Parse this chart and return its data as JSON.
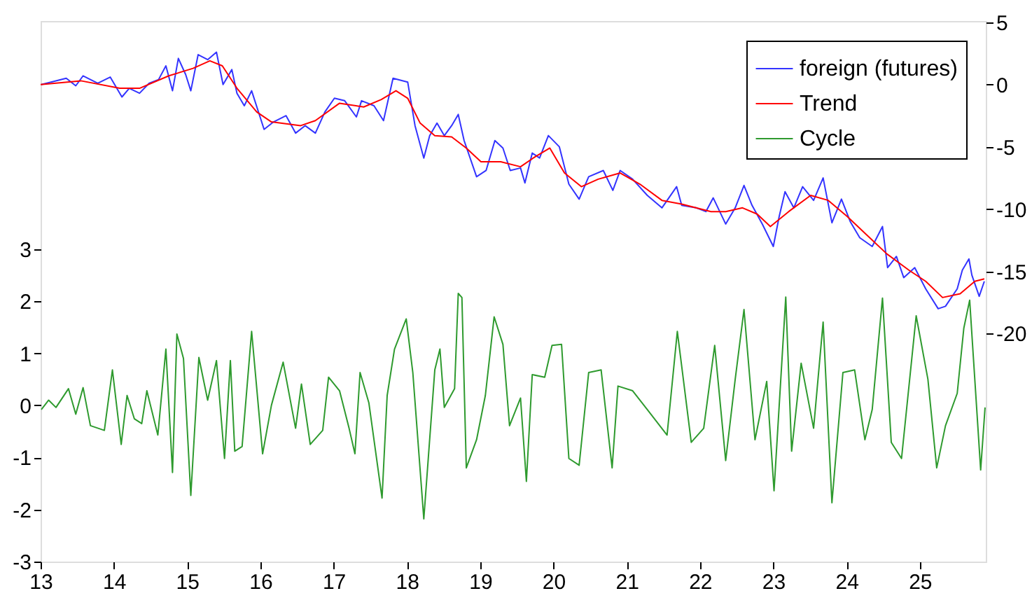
{
  "chart_data": {
    "type": "line",
    "legend": "top right",
    "xlim": [
      13,
      25.9
    ],
    "xticks": [
      13,
      14,
      15,
      16,
      17,
      18,
      19,
      20,
      21,
      22,
      23,
      24,
      25
    ],
    "ylim": [
      -3,
      7.38
    ],
    "yticks": [
      -3,
      -2,
      -1,
      0,
      1,
      2,
      3
    ],
    "y2lim": [
      -38.3,
      5.1
    ],
    "y2ticks": [
      -20,
      -15,
      -10,
      -5,
      0,
      5
    ],
    "series": [
      {
        "name": "foreign (futures)",
        "color": "#3333ff",
        "axis": "y2",
        "x": [
          13.01,
          13.35,
          13.48,
          13.58,
          13.78,
          13.95,
          14.11,
          14.21,
          14.35,
          14.48,
          14.61,
          14.71,
          14.8,
          14.88,
          14.98,
          15.05,
          15.15,
          15.28,
          15.4,
          15.49,
          15.61,
          15.68,
          15.78,
          15.88,
          16.05,
          16.18,
          16.35,
          16.48,
          16.61,
          16.75,
          16.88,
          17.01,
          17.15,
          17.31,
          17.38,
          17.55,
          17.68,
          17.81,
          18.01,
          18.11,
          18.23,
          18.31,
          18.41,
          18.51,
          18.61,
          18.7,
          18.78,
          18.95,
          19.08,
          19.2,
          19.31,
          19.41,
          19.55,
          19.61,
          19.71,
          19.81,
          19.93,
          20.08,
          20.21,
          20.35,
          20.48,
          20.68,
          20.81,
          20.91,
          21.08,
          21.28,
          21.48,
          21.68,
          21.75,
          21.95,
          22.08,
          22.18,
          22.35,
          22.48,
          22.6,
          22.71,
          22.85,
          23.0,
          23.08,
          23.16,
          23.28,
          23.4,
          23.55,
          23.68,
          23.8,
          23.93,
          24.05,
          24.18,
          24.35,
          24.49,
          24.56,
          24.68,
          24.78,
          24.93,
          25.08,
          25.25,
          25.35,
          25.51,
          25.58,
          25.67,
          25.71,
          25.81,
          25.88
        ],
        "values": [
          0.0,
          0.5,
          -0.1,
          0.7,
          0.1,
          0.6,
          -1.0,
          -0.3,
          -0.7,
          0.1,
          0.4,
          1.5,
          -0.5,
          2.1,
          0.8,
          -0.5,
          2.4,
          2.0,
          2.6,
          0.0,
          1.2,
          -0.7,
          -1.7,
          -0.5,
          -3.6,
          -3.0,
          -2.5,
          -3.9,
          -3.3,
          -3.9,
          -2.2,
          -1.1,
          -1.3,
          -2.6,
          -1.3,
          -1.7,
          -2.9,
          0.5,
          0.2,
          -3.3,
          -5.9,
          -4.1,
          -3.1,
          -4.1,
          -3.3,
          -2.4,
          -4.5,
          -7.4,
          -6.9,
          -4.5,
          -5.1,
          -6.9,
          -6.7,
          -7.9,
          -5.5,
          -5.9,
          -4.1,
          -5.0,
          -8.0,
          -9.2,
          -7.4,
          -6.9,
          -8.5,
          -6.9,
          -7.6,
          -8.9,
          -9.9,
          -8.2,
          -9.7,
          -9.9,
          -10.2,
          -9.1,
          -11.2,
          -9.9,
          -8.1,
          -9.7,
          -11.2,
          -13.0,
          -10.6,
          -8.6,
          -9.9,
          -8.2,
          -9.3,
          -7.5,
          -11.1,
          -9.2,
          -11.0,
          -12.3,
          -13.0,
          -11.4,
          -14.7,
          -13.8,
          -15.5,
          -14.7,
          -16.4,
          -18.0,
          -17.8,
          -16.4,
          -14.9,
          -14.0,
          -15.3,
          -17.0,
          -15.8
        ]
      },
      {
        "name": "Trend",
        "color": "#ff0000",
        "axis": "y2",
        "x": [
          13.0,
          13.55,
          14.08,
          14.35,
          14.75,
          15.08,
          15.31,
          15.48,
          15.68,
          15.95,
          16.15,
          16.55,
          16.75,
          17.08,
          17.41,
          17.65,
          17.85,
          18.01,
          18.18,
          18.38,
          18.61,
          18.81,
          19.01,
          19.28,
          19.55,
          19.75,
          19.95,
          20.15,
          20.38,
          20.61,
          20.91,
          21.18,
          21.48,
          21.75,
          22.15,
          22.35,
          22.58,
          22.78,
          22.96,
          23.21,
          23.51,
          23.75,
          24.01,
          24.28,
          24.55,
          24.85,
          25.08,
          25.31,
          25.55,
          25.75,
          25.88
        ],
        "values": [
          0.0,
          0.3,
          -0.3,
          -0.3,
          0.7,
          1.3,
          1.9,
          1.5,
          -0.3,
          -2.2,
          -3.0,
          -3.3,
          -2.9,
          -1.5,
          -1.8,
          -1.2,
          -0.5,
          -1.1,
          -3.1,
          -4.1,
          -4.2,
          -5.1,
          -6.2,
          -6.2,
          -6.6,
          -5.8,
          -5.1,
          -7.1,
          -8.2,
          -7.6,
          -7.1,
          -8.0,
          -9.3,
          -9.6,
          -10.2,
          -10.2,
          -9.9,
          -10.4,
          -11.4,
          -10.2,
          -8.9,
          -9.3,
          -10.6,
          -12.1,
          -13.6,
          -14.9,
          -15.8,
          -17.1,
          -16.8,
          -15.8,
          -15.6
        ]
      },
      {
        "name": "Cycle",
        "color": "#2e9a2e",
        "axis": "y",
        "x": [
          13.01,
          13.11,
          13.21,
          13.38,
          13.48,
          13.58,
          13.68,
          13.87,
          13.98,
          14.1,
          14.18,
          14.28,
          14.38,
          14.45,
          14.6,
          14.71,
          14.8,
          14.86,
          14.95,
          15.05,
          15.16,
          15.28,
          15.4,
          15.51,
          15.59,
          15.65,
          15.75,
          15.88,
          16.03,
          16.15,
          16.31,
          16.48,
          16.56,
          16.68,
          16.85,
          16.93,
          17.08,
          17.21,
          17.29,
          17.36,
          17.48,
          17.66,
          17.73,
          17.83,
          17.99,
          18.08,
          18.23,
          18.38,
          18.45,
          18.51,
          18.65,
          18.7,
          18.75,
          18.81,
          18.95,
          19.07,
          19.19,
          19.31,
          19.4,
          19.55,
          19.63,
          19.71,
          19.88,
          19.98,
          20.11,
          20.21,
          20.35,
          20.48,
          20.65,
          20.8,
          20.88,
          21.08,
          21.28,
          21.55,
          21.69,
          21.88,
          22.05,
          22.2,
          22.35,
          22.48,
          22.6,
          22.75,
          22.91,
          23.01,
          23.17,
          23.25,
          23.38,
          23.55,
          23.68,
          23.8,
          23.95,
          24.11,
          24.25,
          24.35,
          24.49,
          24.61,
          24.75,
          24.95,
          25.11,
          25.23,
          25.35,
          25.51,
          25.6,
          25.68,
          25.83,
          25.89
        ],
        "values": [
          -0.08,
          0.1,
          -0.04,
          0.32,
          -0.17,
          0.34,
          -0.39,
          -0.48,
          0.68,
          -0.75,
          0.19,
          -0.26,
          -0.35,
          0.28,
          -0.57,
          1.08,
          -1.29,
          1.37,
          0.9,
          -1.73,
          0.92,
          0.1,
          0.86,
          -1.02,
          0.86,
          -0.88,
          -0.79,
          1.42,
          -0.93,
          0.0,
          0.83,
          -0.44,
          0.41,
          -0.75,
          -0.48,
          0.54,
          0.28,
          -0.44,
          -0.93,
          0.63,
          0.05,
          -1.78,
          0.19,
          1.08,
          1.66,
          0.63,
          -2.18,
          0.68,
          1.08,
          -0.04,
          0.32,
          2.15,
          2.07,
          -1.2,
          -0.66,
          0.19,
          1.7,
          1.17,
          -0.39,
          0.14,
          -1.46,
          0.59,
          0.54,
          1.15,
          1.17,
          -1.02,
          -1.15,
          0.63,
          0.68,
          -1.2,
          0.37,
          0.28,
          -0.08,
          -0.57,
          1.42,
          -0.71,
          -0.44,
          1.15,
          -1.06,
          0.5,
          1.84,
          -0.66,
          0.46,
          -1.64,
          2.08,
          -0.88,
          0.81,
          -0.44,
          1.6,
          -1.87,
          0.63,
          0.68,
          -0.66,
          -0.08,
          2.06,
          -0.71,
          -1.02,
          1.72,
          0.5,
          -1.2,
          -0.39,
          0.23,
          1.48,
          2.02,
          -1.24,
          -0.04
        ]
      }
    ]
  }
}
